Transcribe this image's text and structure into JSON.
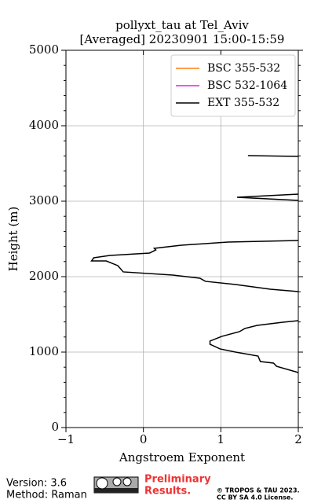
{
  "chart_data": {
    "type": "line",
    "title": "pollyxt_tau at Tel_Aviv",
    "subtitle": "[Averaged] 20230901 15:00-15:59",
    "x_label": "Angstroem Exponent",
    "y_label": "Height (m)",
    "xlim": [
      -1,
      2
    ],
    "xticks": [
      {
        "value": -1,
        "label": "−1"
      },
      0,
      1,
      2
    ],
    "ylim": [
      0,
      5000
    ],
    "yticks": [
      0,
      1000,
      2000,
      3000,
      4000,
      5000
    ],
    "yminorticks": [
      200,
      400,
      600,
      800,
      1200,
      1400,
      1600,
      1800,
      2200,
      2400,
      2600,
      2800,
      3200,
      3400,
      3600,
      3800,
      4200,
      4400,
      4600,
      4800
    ],
    "grid": true,
    "legend": "upper right",
    "series": [
      {
        "name": "BSC 355-532",
        "color": "#ff7f0e",
        "values": [],
        "heights": []
      },
      {
        "name": "BSC 532-1064",
        "color": "#e020e0",
        "values": [],
        "heights": []
      },
      {
        "name": "EXT 355-532",
        "color": "#000000",
        "values": [
          2.0,
          1.72,
          1.68,
          1.51,
          1.48,
          1.19,
          0.99,
          0.86,
          0.86,
          1.01,
          1.24,
          1.31,
          1.47,
          1.8,
          2.0,
          null,
          2.0,
          1.64,
          1.19,
          0.8,
          0.73,
          0.38,
          -0.26,
          -0.33,
          -0.48,
          -0.67,
          -0.64,
          -0.43,
          0.08,
          0.16,
          0.14,
          0.49,
          1.09,
          2.0,
          null,
          2.0,
          1.21,
          2.0,
          null,
          1.35,
          2.0
        ],
        "heights": [
          729,
          812,
          854,
          875,
          948,
          1000,
          1042,
          1104,
          1146,
          1208,
          1271,
          1313,
          1354,
          1396,
          1417,
          null,
          1802,
          1833,
          1896,
          1938,
          1979,
          2021,
          2063,
          2146,
          2208,
          2208,
          2250,
          2281,
          2313,
          2354,
          2375,
          2417,
          2458,
          2479,
          null,
          3010,
          3052,
          3094,
          null,
          3604,
          3594
        ]
      }
    ]
  },
  "footer": {
    "version": "Version: 3.6",
    "method": "Method: Raman",
    "preliminary": [
      "Preliminary",
      "Results."
    ],
    "license": [
      "© TROPOS & TAU 2023.",
      "CC BY SA 4.0 License."
    ]
  }
}
